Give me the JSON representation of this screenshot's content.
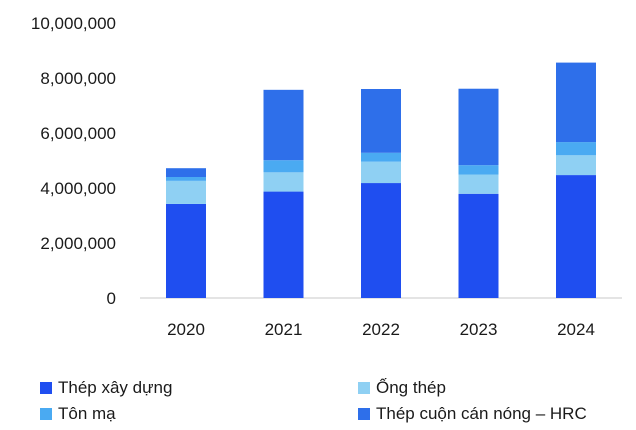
{
  "chart_data": {
    "type": "bar",
    "stacked": true,
    "categories": [
      "2020",
      "2021",
      "2022",
      "2023",
      "2024"
    ],
    "series": [
      {
        "name": "Thép xây dựng",
        "color": "#1F4EF0",
        "values": [
          3420000,
          3870000,
          4180000,
          3790000,
          4470000
        ]
      },
      {
        "name": "Ống thép",
        "color": "#8FD0F3",
        "values": [
          840000,
          700000,
          780000,
          700000,
          720000
        ]
      },
      {
        "name": "Tôn mạ",
        "color": "#4AAAF2",
        "values": [
          140000,
          440000,
          320000,
          340000,
          480000
        ]
      },
      {
        "name": "Thép cuộn cán nóng - HRC",
        "color": "#2E6FEA",
        "values": [
          320000,
          2560000,
          2320000,
          2780000,
          2890000
        ]
      }
    ],
    "yticks": [
      "0",
      "2,000,000",
      "4,000,000",
      "6,000,000",
      "8,000,000",
      "10,000,000"
    ],
    "ylim": [
      0,
      10000000
    ],
    "grid": false,
    "legend_position": "bottom"
  },
  "legend": {
    "items": [
      {
        "label": "Thép xây dựng",
        "color": "#1F4EF0"
      },
      {
        "label": "Ống thép",
        "color": "#8FD0F3"
      },
      {
        "label": "Tôn mạ",
        "color": "#4AAAF2"
      },
      {
        "label": "Thép cuộn cán nóng – HRC",
        "color": "#2E6FEA"
      }
    ]
  }
}
